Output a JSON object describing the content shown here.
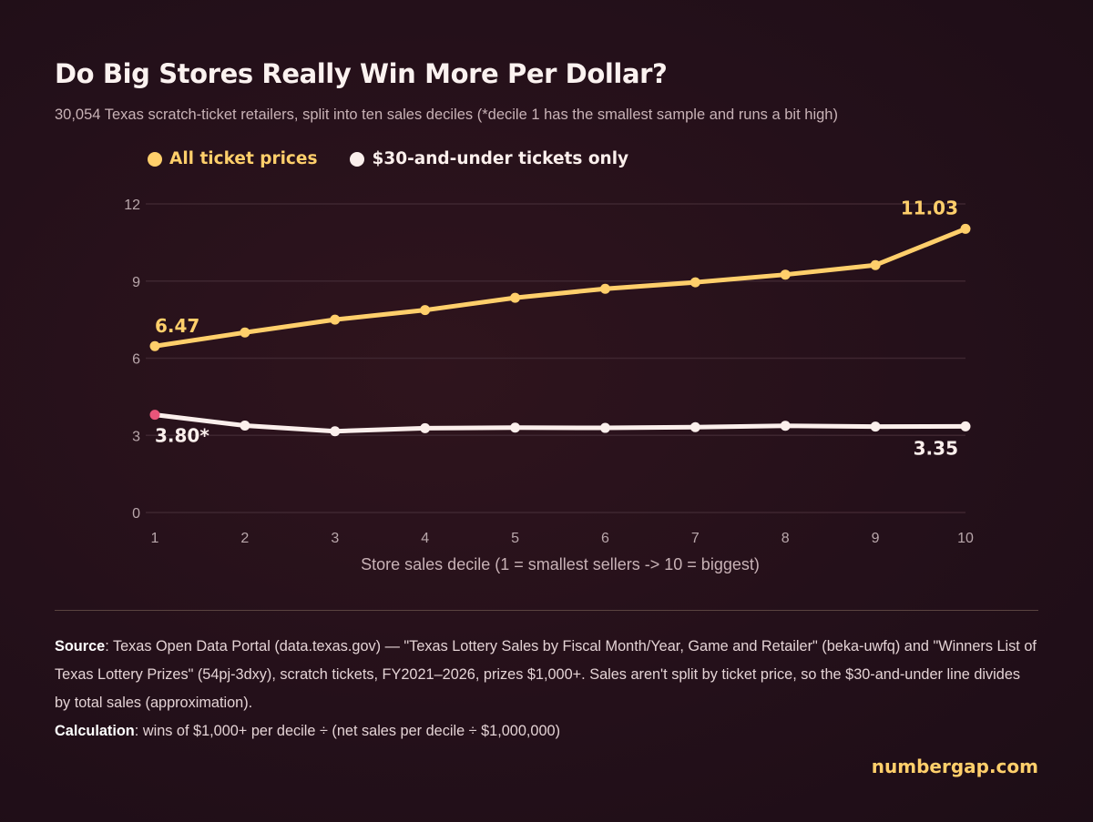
{
  "chart_data": {
    "type": "line",
    "title": "Do Big Stores Really Win More Per Dollar?",
    "subtitle": "30,054 Texas scratch-ticket retailers, split into ten sales deciles (*decile 1 has the smallest sample and runs a bit high)",
    "xlabel": "Store sales decile (1 = smallest sellers -> 10 = biggest)",
    "ylabel": "",
    "x": [
      1,
      2,
      3,
      4,
      5,
      6,
      7,
      8,
      9,
      10
    ],
    "x_tick_labels": [
      "1",
      "2",
      "3",
      "4",
      "5",
      "6",
      "7",
      "8",
      "9",
      "10"
    ],
    "ylim": [
      0,
      12
    ],
    "y_ticks": [
      0,
      3,
      6,
      9,
      12
    ],
    "y_tick_labels": [
      "0",
      "3",
      "6",
      "9",
      "12"
    ],
    "grid": true,
    "legend_position": "top-left",
    "series": [
      {
        "name": "All ticket prices",
        "color": "#ffcf6b",
        "values": [
          6.47,
          7.0,
          7.5,
          7.87,
          8.35,
          8.7,
          8.95,
          9.25,
          9.62,
          11.03
        ],
        "labels": [
          {
            "index": 0,
            "text": "6.47"
          },
          {
            "index": 9,
            "text": "11.03"
          }
        ]
      },
      {
        "name": "$30-and-under tickets only",
        "color": "#fbefec",
        "highlight_first_color": "#e8557a",
        "values": [
          3.8,
          3.38,
          3.16,
          3.28,
          3.3,
          3.29,
          3.32,
          3.37,
          3.34,
          3.35
        ],
        "labels": [
          {
            "index": 0,
            "text": "3.80*"
          },
          {
            "index": 9,
            "text": "3.35"
          }
        ]
      }
    ]
  },
  "footer": {
    "source_label": "Source",
    "source_text": ": Texas Open Data Portal (data.texas.gov) — \"Texas Lottery Sales by Fiscal Month/Year, Game and Retailer\" (beka-uwfq) and \"Winners List of Texas Lottery Prizes\" (54pj-3dxy), scratch tickets, FY2021–2026, prizes $1,000+. Sales aren't split by ticket price, so the $30-and-under line divides by total sales (approximation).",
    "calc_label": "Calculation",
    "calc_text": ": wins of $1,000+ per decile ÷ (net sales per decile ÷ $1,000,000)"
  },
  "brand": "numbergap.com"
}
